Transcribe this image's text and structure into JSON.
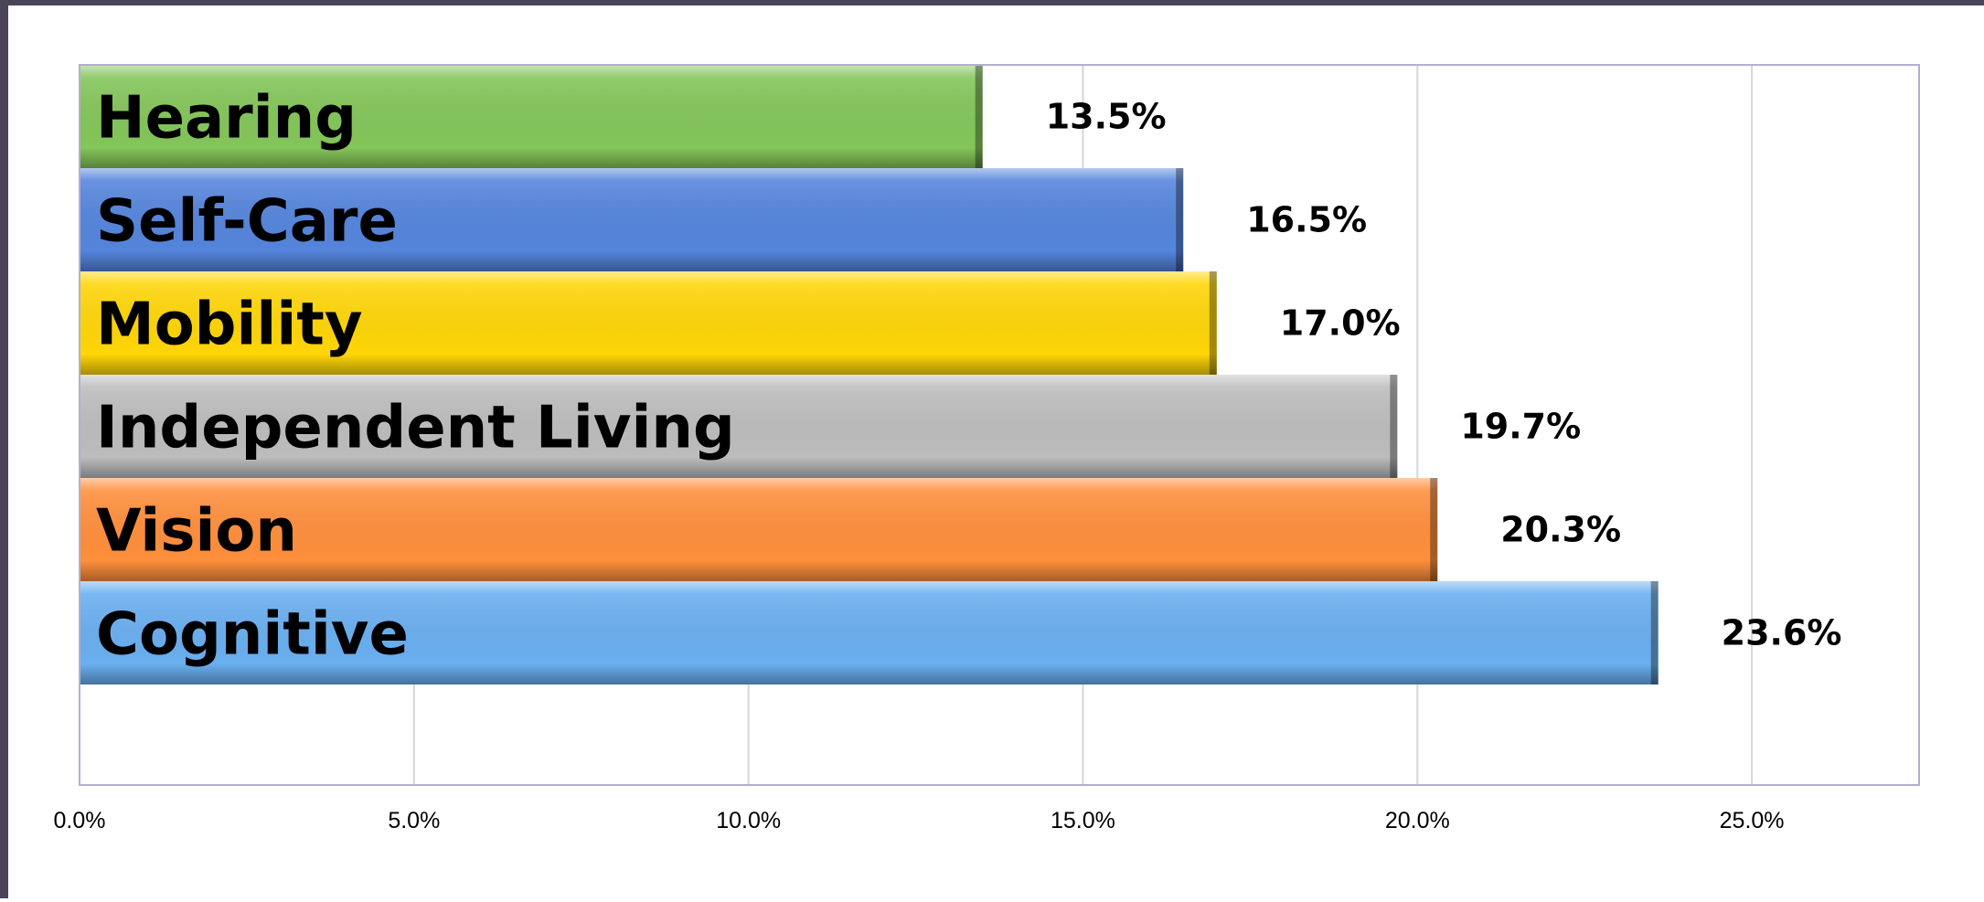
{
  "chart_data": {
    "type": "bar",
    "orientation": "horizontal",
    "title": "",
    "xlabel": "",
    "ylabel": "",
    "categories": [
      "Hearing",
      "Self-Care",
      "Mobility",
      "Independent Living",
      "Vision",
      "Cognitive"
    ],
    "values": [
      13.5,
      16.5,
      17.0,
      19.7,
      20.3,
      23.6
    ],
    "value_labels": [
      "13.5%",
      "16.5%",
      "17.0%",
      "19.7%",
      "20.3%",
      "23.6%"
    ],
    "bar_colors": [
      "#84c65a",
      "#5585dc",
      "#ffd608",
      "#bdbdbd",
      "#ff8f3c",
      "#6aaff0"
    ],
    "xlim": [
      0,
      27.5
    ],
    "x_ticks": [
      0,
      5,
      10,
      15,
      20,
      25
    ],
    "x_tick_labels": [
      "0.0%",
      "5.0%",
      "10.0%",
      "15.0%",
      "20.0%",
      "25.0%"
    ],
    "grid": "vertical",
    "legend": "none"
  }
}
